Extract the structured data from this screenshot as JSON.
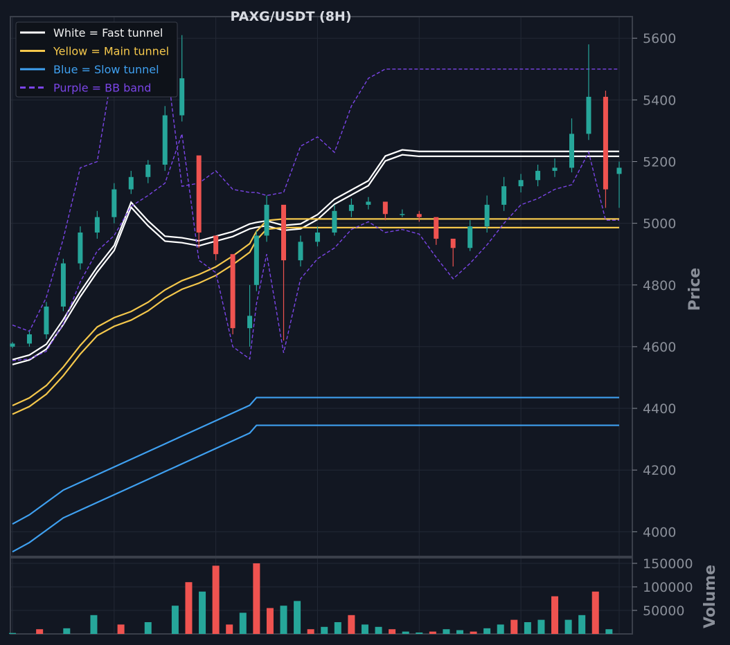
{
  "chart_data": [
    {
      "type": "line",
      "panel": "price",
      "title": "PAXG/USDT (8H)",
      "xlabel": "",
      "ylabel": "Price",
      "ylim": [
        3920,
        5670
      ],
      "yticks": [
        4000,
        4200,
        4400,
        4600,
        4800,
        5000,
        5200,
        5400,
        5600
      ],
      "grid": true,
      "legend_position": "top-left",
      "legend": [
        {
          "label": "White = Fast tunnel",
          "color": "#ffffff",
          "dash": false
        },
        {
          "label": "Yellow = Main tunnel",
          "color": "#f5c84c",
          "dash": false
        },
        {
          "label": "Blue = Slow tunnel",
          "color": "#3fa0f0",
          "dash": false
        },
        {
          "label": "Purple = BB band",
          "color": "#7b45e8",
          "dash": true
        }
      ],
      "x": [
        0,
        5,
        10,
        15,
        20,
        25,
        30,
        35,
        40,
        45,
        50,
        55,
        60,
        65,
        70,
        72,
        75,
        80,
        85,
        90,
        95,
        100,
        105,
        110,
        115,
        120,
        125,
        130,
        135,
        140,
        145,
        150,
        155,
        160,
        165,
        170,
        175,
        179
      ],
      "candles": {
        "open": [
          4600,
          4610,
          4640,
          4730,
          4870,
          4970,
          5020,
          5110,
          5150,
          5190,
          5350,
          5220,
          4960,
          4900,
          4660,
          4800,
          4960,
          5060,
          4880,
          4940,
          4970,
          5040,
          5060,
          5070,
          5030,
          5030,
          5020,
          4950,
          4920,
          4990,
          5060,
          5120,
          5140,
          5170,
          5180,
          5290,
          5410,
          5160
        ],
        "close": [
          4610,
          4640,
          4730,
          4870,
          4970,
          5020,
          5110,
          5150,
          5190,
          5350,
          5470,
          4970,
          4900,
          4660,
          4700,
          4960,
          5060,
          4880,
          4940,
          4970,
          5040,
          5060,
          5070,
          5030,
          5030,
          5020,
          4950,
          4920,
          4990,
          5060,
          5120,
          5140,
          5170,
          5180,
          5290,
          5410,
          5110,
          5180
        ],
        "high": [
          4615,
          4650,
          4745,
          4885,
          4990,
          5040,
          5130,
          5170,
          5205,
          5380,
          5610,
          5000,
          4930,
          4690,
          4800,
          4975,
          5090,
          4900,
          4960,
          4990,
          5060,
          5080,
          5085,
          5050,
          5045,
          5040,
          4970,
          4940,
          5010,
          5090,
          5150,
          5160,
          5190,
          5210,
          5340,
          5580,
          5430,
          5200
        ],
        "low": [
          4595,
          4600,
          4625,
          4715,
          4850,
          4950,
          5000,
          5095,
          5130,
          5170,
          5330,
          4920,
          4880,
          4640,
          4600,
          4780,
          4940,
          4620,
          4860,
          4925,
          4960,
          5020,
          5045,
          5010,
          5020,
          5005,
          4930,
          4860,
          4910,
          4970,
          5040,
          5100,
          5120,
          5150,
          5165,
          5270,
          5050,
          5050
        ]
      },
      "series": [
        {
          "name": "White = Fast tunnel",
          "color": "#ffffff",
          "dash": false,
          "values": [
            4550,
            4565,
            4600,
            4680,
            4770,
            4850,
            4920,
            5060,
            5000,
            4950,
            4945,
            4935,
            4950,
            4965,
            4990,
            4995,
            5000,
            4985,
            4990,
            5020,
            5070,
            5100,
            5130,
            5210,
            5230,
            5225,
            5225,
            5225,
            5225,
            5225,
            5225,
            5225,
            5225,
            5225,
            5225,
            5225,
            5225,
            5225
          ]
        },
        {
          "name": "Yellow = Main tunnel",
          "color": "#f5c84c",
          "dash": false,
          "values": [
            4395,
            4420,
            4460,
            4520,
            4590,
            4650,
            4680,
            4700,
            4730,
            4770,
            4800,
            4820,
            4845,
            4880,
            4920,
            4960,
            4995,
            5000,
            5000,
            5000,
            5000,
            5000,
            5000,
            5000,
            5000,
            5000,
            5000,
            5000,
            5000,
            5000,
            5000,
            5000,
            5000,
            5000,
            5000,
            5000,
            5000,
            5000
          ]
        },
        {
          "name": "Blue = Slow tunnel",
          "color": "#3fa0f0",
          "dash": false,
          "values": [
            3980,
            4010,
            4050,
            4090,
            4115,
            4140,
            4165,
            4190,
            4215,
            4240,
            4265,
            4290,
            4315,
            4340,
            4365,
            4390,
            4390,
            4390,
            4390,
            4390,
            4390,
            4390,
            4390,
            4390,
            4390,
            4390,
            4390,
            4390,
            4390,
            4390,
            4390,
            4390,
            4390,
            4390,
            4390,
            4390,
            4390,
            4390
          ]
        },
        {
          "name": "Purple = BB band",
          "color": "#7b45e8",
          "dash": true,
          "values": [
            4670,
            4650,
            4760,
            4950,
            5180,
            5200,
            5530,
            5560,
            5640,
            5560,
            5120,
            5130,
            5170,
            5110,
            5100,
            5100,
            5090,
            5100,
            5250,
            5280,
            5230,
            5380,
            5470,
            5500,
            5500,
            5500,
            5500,
            5500,
            5500,
            5500,
            5500,
            5500,
            5500,
            5500,
            5500,
            5500,
            5500,
            5500
          ]
        }
      ]
    },
    {
      "type": "bar",
      "panel": "volume",
      "xlabel": "",
      "ylabel": "Volume",
      "ylim": [
        0,
        150000
      ],
      "yticks": [
        50000,
        100000,
        150000
      ],
      "grid": true,
      "x": [
        0,
        8,
        16,
        24,
        32,
        40,
        48,
        52,
        56,
        60,
        64,
        68,
        72,
        76,
        80,
        84,
        88,
        92,
        96,
        100,
        104,
        108,
        112,
        116,
        120,
        124,
        128,
        132,
        136,
        140,
        144,
        148,
        152,
        156,
        160,
        164,
        168,
        172,
        176
      ],
      "values": [
        2000,
        10000,
        12000,
        40000,
        20000,
        25000,
        60000,
        110000,
        90000,
        145000,
        20000,
        45000,
        150000,
        55000,
        60000,
        70000,
        10000,
        15000,
        25000,
        40000,
        20000,
        15000,
        10000,
        5000,
        3000,
        5000,
        10000,
        8000,
        5000,
        12000,
        20000,
        30000,
        25000,
        30000,
        80000,
        30000,
        40000,
        90000,
        10000
      ]
    }
  ]
}
